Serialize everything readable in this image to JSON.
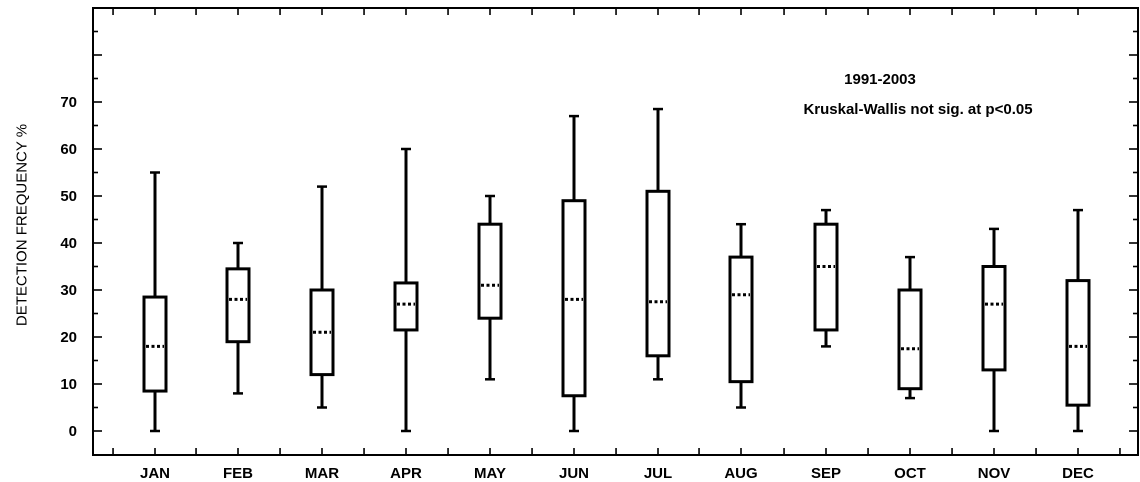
{
  "chart_data": {
    "type": "box",
    "ylabel": "DETECTION FREQUENCY %",
    "xlabel": "",
    "ylim": [
      -5,
      90
    ],
    "yticks": [
      0,
      10,
      20,
      30,
      40,
      50,
      60,
      70
    ],
    "grid": false,
    "annotations": [
      "1991-2003",
      "Kruskal-Wallis not sig. at p<0.05"
    ],
    "categories": [
      "JAN",
      "FEB",
      "MAR",
      "APR",
      "MAY",
      "JUN",
      "JUL",
      "AUG",
      "SEP",
      "OCT",
      "NOV",
      "DEC"
    ],
    "boxes": [
      {
        "min": 0,
        "q1": 8.5,
        "median": 18,
        "q3": 28.5,
        "max": 55
      },
      {
        "min": 8,
        "q1": 19,
        "median": 28,
        "q3": 34.5,
        "max": 40
      },
      {
        "min": 5,
        "q1": 12,
        "median": 21,
        "q3": 30,
        "max": 52
      },
      {
        "min": 0,
        "q1": 21.5,
        "median": 27,
        "q3": 31.5,
        "max": 60
      },
      {
        "min": 11,
        "q1": 24,
        "median": 31,
        "q3": 44,
        "max": 50
      },
      {
        "min": 0,
        "q1": 7.5,
        "median": 28,
        "q3": 49,
        "max": 67
      },
      {
        "min": 11,
        "q1": 16,
        "median": 27.5,
        "q3": 51,
        "max": 68.5
      },
      {
        "min": 5,
        "q1": 10.5,
        "median": 29,
        "q3": 37,
        "max": 44
      },
      {
        "min": 18,
        "q1": 21.5,
        "median": 35,
        "q3": 44,
        "max": 47
      },
      {
        "min": 7,
        "q1": 9,
        "median": 17.5,
        "q3": 30,
        "max": 37
      },
      {
        "min": 0,
        "q1": 13,
        "median": 27,
        "q3": 35,
        "max": 43
      },
      {
        "min": 0,
        "q1": 5.5,
        "median": 18,
        "q3": 32,
        "max": 47
      }
    ]
  }
}
